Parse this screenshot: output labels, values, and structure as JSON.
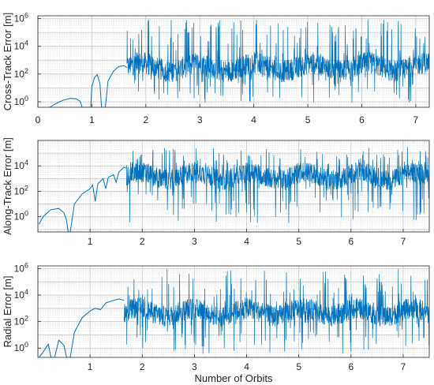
{
  "chart_data": [
    {
      "type": "line",
      "ylabel": "Cross-Track Error [m]",
      "xlabel": "",
      "y_scale": "log",
      "xlim": [
        0,
        7.25
      ],
      "ylim_log10": [
        -0.4,
        6.2
      ],
      "xticks": [
        0,
        1,
        2,
        3,
        4,
        5,
        6,
        7
      ],
      "xtick_labels": [
        "0",
        "1",
        "2",
        "3",
        "4",
        "5",
        "6",
        "7"
      ],
      "yticks": [
        0,
        2,
        4,
        6
      ],
      "ytick_labels": [
        "10^0",
        "10^2",
        "10^4",
        "10^6"
      ],
      "grid": true,
      "series": [
        {
          "points": [
            [
              0.22,
              -0.4
            ],
            [
              0.3,
              -0.2
            ],
            [
              0.4,
              0.0
            ],
            [
              0.5,
              0.15
            ],
            [
              0.6,
              0.25
            ],
            [
              0.7,
              0.22
            ],
            [
              0.78,
              0.05
            ],
            [
              0.82,
              -0.4
            ],
            [
              0.98,
              -0.4
            ],
            [
              1.0,
              1.1
            ],
            [
              1.05,
              1.75
            ],
            [
              1.1,
              1.95
            ],
            [
              1.15,
              1.3
            ],
            [
              1.18,
              -0.4
            ],
            [
              1.25,
              -0.4
            ],
            [
              1.3,
              1.5
            ],
            [
              1.4,
              2.2
            ],
            [
              1.5,
              2.55
            ],
            [
              1.6,
              2.6
            ],
            [
              1.65,
              2.45
            ]
          ],
          "noisy_segment": {
            "x_start": 1.65,
            "x_end": 7.25,
            "baseline": 2.5,
            "min": -0.1,
            "max": 6.0
          }
        }
      ]
    },
    {
      "type": "line",
      "ylabel": "Along-Track Error [m]",
      "xlabel": "",
      "y_scale": "log",
      "xlim": [
        0,
        7.5
      ],
      "ylim_log10": [
        -1.2,
        6.0
      ],
      "xticks": [
        1,
        2,
        3,
        4,
        5,
        6,
        7
      ],
      "xtick_labels": [
        "1",
        "2",
        "3",
        "4",
        "5",
        "6",
        "7"
      ],
      "yticks": [
        0,
        2,
        4
      ],
      "ytick_labels": [
        "10^0",
        "10^2",
        "10^4"
      ],
      "grid": true,
      "series": [
        {
          "points": [
            [
              0.02,
              -0.6
            ],
            [
              0.1,
              0.0
            ],
            [
              0.25,
              0.55
            ],
            [
              0.4,
              0.65
            ],
            [
              0.5,
              0.3
            ],
            [
              0.55,
              -0.3
            ],
            [
              0.58,
              -1.2
            ],
            [
              0.62,
              -1.2
            ],
            [
              0.7,
              1.0
            ],
            [
              0.85,
              1.8
            ],
            [
              1.0,
              2.2
            ],
            [
              1.05,
              2.5
            ],
            [
              1.1,
              1.2
            ],
            [
              1.15,
              2.6
            ],
            [
              1.25,
              3.0
            ],
            [
              1.3,
              2.2
            ],
            [
              1.35,
              3.1
            ],
            [
              1.45,
              3.3
            ],
            [
              1.5,
              2.7
            ],
            [
              1.55,
              3.5
            ],
            [
              1.65,
              3.9
            ],
            [
              1.7,
              3.8
            ]
          ],
          "noisy_segment": {
            "x_start": 1.7,
            "x_end": 7.5,
            "baseline": 3.2,
            "min": -0.5,
            "max": 5.5
          }
        }
      ]
    },
    {
      "type": "line",
      "ylabel": "Radial Error [m]",
      "xlabel": "Number of Orbits",
      "y_scale": "log",
      "xlim": [
        0,
        7.5
      ],
      "ylim_log10": [
        -0.7,
        6.2
      ],
      "xticks": [
        1,
        2,
        3,
        4,
        5,
        6,
        7
      ],
      "xtick_labels": [
        "1",
        "2",
        "3",
        "4",
        "5",
        "6",
        "7"
      ],
      "yticks": [
        0,
        2,
        4,
        6
      ],
      "ytick_labels": [
        "10^0",
        "10^2",
        "10^4",
        "10^6"
      ],
      "grid": true,
      "series": [
        {
          "points": [
            [
              0.02,
              -0.7
            ],
            [
              0.1,
              -0.3
            ],
            [
              0.2,
              0.3
            ],
            [
              0.25,
              -0.7
            ],
            [
              0.32,
              -0.7
            ],
            [
              0.4,
              0.6
            ],
            [
              0.5,
              0.2
            ],
            [
              0.55,
              -0.7
            ],
            [
              0.62,
              -0.7
            ],
            [
              0.7,
              1.2
            ],
            [
              0.85,
              2.3
            ],
            [
              1.0,
              2.8
            ],
            [
              1.1,
              3.0
            ],
            [
              1.2,
              2.9
            ],
            [
              1.3,
              3.4
            ],
            [
              1.45,
              3.6
            ],
            [
              1.55,
              3.7
            ],
            [
              1.65,
              3.6
            ]
          ],
          "noisy_segment": {
            "x_start": 1.65,
            "x_end": 7.5,
            "baseline": 2.7,
            "min": -0.5,
            "max": 6.0
          }
        }
      ]
    }
  ]
}
